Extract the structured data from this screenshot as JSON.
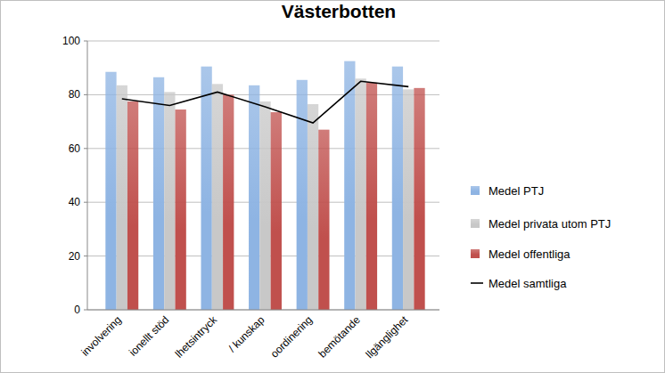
{
  "chart_data": {
    "type": "bar",
    "title": "Västerbotten",
    "categories": [
      "involvering",
      "ionellt stöd",
      "lhetsintryck",
      "/ kunskap",
      "oordinering",
      "bemötande",
      "llgänglighet"
    ],
    "series": [
      {
        "name": "Medel PTJ",
        "color": "#8eb4e3",
        "values": [
          88.5,
          86.5,
          90.5,
          83.5,
          85.5,
          92.5,
          90.5
        ]
      },
      {
        "name": "Medel privata utom PTJ",
        "color": "#c8c8c8",
        "values": [
          83.5,
          81,
          84,
          77.5,
          76.5,
          86,
          82
        ]
      },
      {
        "name": "Medel offentliga",
        "color": "#c0504d",
        "values": [
          77.5,
          74.5,
          80,
          73.5,
          67,
          84.5,
          82.5
        ]
      },
      {
        "name": "Medel samtliga",
        "color": "#000000",
        "type": "line",
        "values": [
          78.5,
          76,
          81,
          75.5,
          69.5,
          85,
          83
        ]
      }
    ],
    "ylim": [
      0,
      100
    ],
    "yticks": [
      0,
      20,
      40,
      60,
      80,
      100
    ],
    "grid": true,
    "legend": "right"
  }
}
